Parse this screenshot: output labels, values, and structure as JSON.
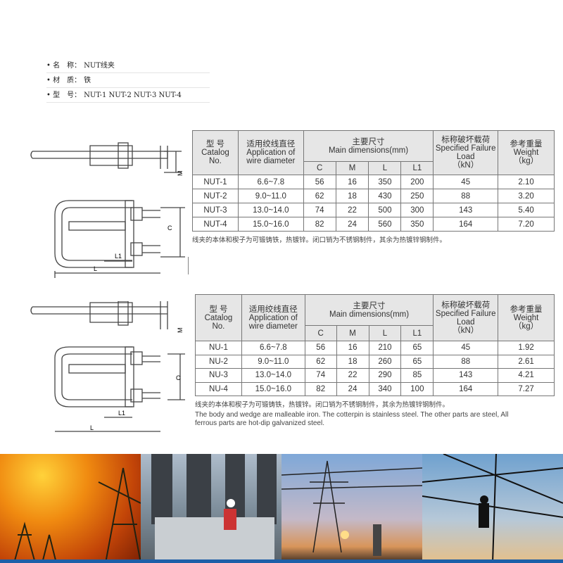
{
  "specs": [
    {
      "key": "名　称：",
      "value": "NUT线夹"
    },
    {
      "key": "材　质：",
      "value": "铁"
    },
    {
      "key": "型　号：",
      "value": "NUT-1 NUT-2 NUT-3 NUT-4"
    }
  ],
  "header": {
    "catalog": "型 号\nCatalog\nNo.",
    "wire": "适用绞线直径\nApplication of\nwire diameter",
    "dims": "主要尺寸\nMain dimensions(mm)",
    "load": "标称破坏载荷\nSpecified Failure\nLoad\n（kN）",
    "weight": "参考重量\nWeight\n（kg）",
    "cols": [
      "C",
      "M",
      "L",
      "L1"
    ]
  },
  "table1": {
    "rows": [
      [
        "NUT-1",
        "6.6~7.8",
        "56",
        "16",
        "350",
        "200",
        "45",
        "2.10"
      ],
      [
        "NUT-2",
        "9.0~11.0",
        "62",
        "18",
        "430",
        "250",
        "88",
        "3.20"
      ],
      [
        "NUT-3",
        "13.0~14.0",
        "74",
        "22",
        "500",
        "300",
        "143",
        "5.40"
      ],
      [
        "NUT-4",
        "15.0~16.0",
        "82",
        "24",
        "560",
        "350",
        "164",
        "7.20"
      ]
    ],
    "note_cn": "线夹的本体和楔子为可锻铸铁，热镀锌。闭口销为不锈钢制件，其余为热镀锌钢制件。"
  },
  "table2": {
    "rows": [
      [
        "NU-1",
        "6.6~7.8",
        "56",
        "16",
        "210",
        "65",
        "45",
        "1.92"
      ],
      [
        "NU-2",
        "9.0~11.0",
        "62",
        "18",
        "260",
        "65",
        "88",
        "2.61"
      ],
      [
        "NU-3",
        "13.0~14.0",
        "74",
        "22",
        "290",
        "85",
        "143",
        "4.21"
      ],
      [
        "NU-4",
        "15.0~16.0",
        "82",
        "24",
        "340",
        "100",
        "164",
        "7.27"
      ]
    ],
    "note_cn": "线夹的本体和楔子为可锻铸铁，热镀锌。闭口销为不锈钢制件，其余为热镀锌钢制件。",
    "note_en": "The body and wedge are malleable iron. The cotterpin is stainless steel. The other parts are steel, All ferrous parts are hot-dip galvanized steel."
  },
  "drawing_labels": {
    "m": "M",
    "c": "C",
    "l": "L",
    "l1": "L1"
  },
  "colors": {
    "accent_bar": "#1d5fa8",
    "header_bg": "#e6e6e6"
  }
}
